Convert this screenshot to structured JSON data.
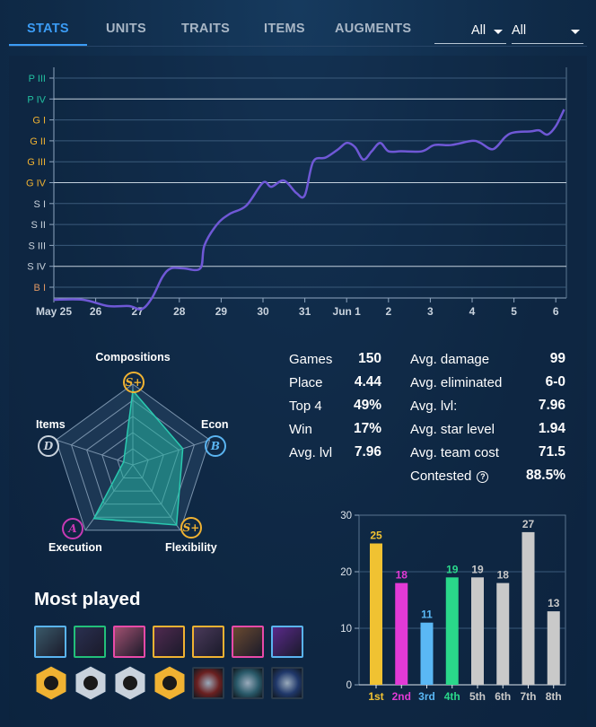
{
  "tabs": [
    {
      "label": "STATS",
      "active": true
    },
    {
      "label": "UNITS",
      "active": false
    },
    {
      "label": "TRAITS",
      "active": false
    },
    {
      "label": "ITEMS",
      "active": false
    },
    {
      "label": "AUGMENTS",
      "active": false
    }
  ],
  "filters": {
    "first": "All",
    "second": "All"
  },
  "rank_chart": {
    "chart_data": {
      "type": "line",
      "y_tick_labels": [
        "P III",
        "P IV",
        "G I",
        "G II",
        "G III",
        "G IV",
        "S I",
        "S II",
        "S III",
        "S IV",
        "B I"
      ],
      "x_tick_labels": [
        "May 25",
        "26",
        "27",
        "28",
        "29",
        "30",
        "31",
        "Jun 1",
        "2",
        "3",
        "4",
        "5",
        "6"
      ],
      "series": [
        {
          "values": [
            [
              0,
              10.6
            ],
            [
              0.7,
              10.6
            ],
            [
              1.3,
              10.9
            ],
            [
              1.8,
              10.9
            ],
            [
              2.1,
              11.05
            ],
            [
              2.35,
              10.5
            ],
            [
              2.6,
              9.5
            ],
            [
              2.8,
              9.1
            ],
            [
              3.1,
              9.1
            ],
            [
              3.5,
              9.1
            ],
            [
              3.6,
              8.0
            ],
            [
              3.9,
              7.0
            ],
            [
              4.2,
              6.5
            ],
            [
              4.6,
              6.1
            ],
            [
              5.0,
              5.0
            ],
            [
              5.2,
              5.2
            ],
            [
              5.5,
              4.9
            ],
            [
              5.8,
              5.5
            ],
            [
              6.0,
              5.6
            ],
            [
              6.2,
              4.0
            ],
            [
              6.5,
              3.8
            ],
            [
              6.8,
              3.4
            ],
            [
              7.0,
              3.1
            ],
            [
              7.2,
              3.3
            ],
            [
              7.4,
              3.9
            ],
            [
              7.6,
              3.5
            ],
            [
              7.8,
              3.1
            ],
            [
              8.0,
              3.5
            ],
            [
              8.3,
              3.5
            ],
            [
              8.8,
              3.5
            ],
            [
              9.1,
              3.2
            ],
            [
              9.5,
              3.2
            ],
            [
              10.0,
              3.0
            ],
            [
              10.2,
              3.1
            ],
            [
              10.5,
              3.4
            ],
            [
              10.8,
              2.8
            ],
            [
              11.0,
              2.6
            ],
            [
              11.4,
              2.55
            ],
            [
              11.6,
              2.5
            ],
            [
              11.8,
              2.7
            ],
            [
              12.0,
              2.3
            ],
            [
              12.2,
              1.5
            ]
          ]
        }
      ],
      "colors": {
        "line": "#6f58d6",
        "gold": "#f0b232",
        "platinum": "#22c0a0",
        "silver": "#c9d2dc",
        "bronze": "#e09864"
      }
    }
  },
  "stats_left": [
    {
      "label": "Games",
      "value": "150"
    },
    {
      "label": "Place",
      "value": "4.44"
    },
    {
      "label": "Top 4",
      "value": "49%"
    },
    {
      "label": "Win",
      "value": "17%"
    },
    {
      "label": "Avg. lvl",
      "value": "7.96"
    }
  ],
  "stats_right": [
    {
      "label": "Avg. damage",
      "value": "99"
    },
    {
      "label": "Avg. eliminated",
      "value": "6-0"
    },
    {
      "label": "Avg. lvl:",
      "value": "7.96"
    },
    {
      "label": "Avg. star level",
      "value": "1.94"
    },
    {
      "label": "Avg. team cost",
      "value": "71.5"
    },
    {
      "label": "Contested",
      "value": "88.5%",
      "help_icon": "question-circle-icon"
    }
  ],
  "radar": {
    "chart_data": {
      "type": "radar",
      "axes": [
        "Compositions",
        "Econ",
        "Flexibility",
        "Execution",
        "Items"
      ],
      "grades": [
        "S+",
        "B",
        "S+",
        "A",
        "D"
      ],
      "values": [
        0.92,
        0.65,
        0.92,
        0.82,
        0.12
      ],
      "max": 1,
      "grade_colors": {
        "S+": "#f0b232",
        "B": "#5ab4f0",
        "A": "#c83ab4",
        "D": "#c9d2dc"
      }
    }
  },
  "most_played": {
    "title": "Most played",
    "champions": [
      {
        "name": "champion-1",
        "border": "#5ab4f0",
        "bg": "#3a5a6a"
      },
      {
        "name": "champion-2",
        "border": "#22c07a",
        "bg": "#2a3050"
      },
      {
        "name": "champion-3",
        "border": "#e84aa8",
        "bg": "#a05070"
      },
      {
        "name": "champion-4",
        "border": "#f0b232",
        "bg": "#502a50"
      },
      {
        "name": "champion-5",
        "border": "#f0b232",
        "bg": "#4a3a5a"
      },
      {
        "name": "champion-6",
        "border": "#e84aa8",
        "bg": "#6a4a30"
      },
      {
        "name": "champion-7",
        "border": "#5ab4f0",
        "bg": "#5a2a8a"
      }
    ],
    "traits": [
      {
        "name": "rose-trait-icon",
        "color": "#f0b232"
      },
      {
        "name": "rose-trait-icon",
        "color": "#c9d2dc"
      },
      {
        "name": "arch-trait-icon",
        "color": "#c9d2dc"
      },
      {
        "name": "crown-trait-icon",
        "color": "#f0b232"
      }
    ],
    "items": [
      {
        "name": "item-1",
        "bg": "#6a2020"
      },
      {
        "name": "item-2",
        "bg": "#2a5a6a"
      },
      {
        "name": "item-3",
        "bg": "#20386a"
      }
    ]
  },
  "placements": {
    "chart_data": {
      "type": "bar",
      "categories": [
        "1st",
        "2nd",
        "3rd",
        "4th",
        "5th",
        "6th",
        "7th",
        "8th"
      ],
      "values": [
        25,
        18,
        11,
        19,
        19,
        18,
        27,
        13
      ],
      "ylim": [
        0,
        30
      ],
      "y_ticks": [
        "0",
        "10",
        "20",
        "30"
      ],
      "colors": [
        "#f0c232",
        "#e23ad6",
        "#5ab8f5",
        "#2ad88a",
        "#c9c9c9",
        "#c9c9c9",
        "#c9c9c9",
        "#c9c9c9"
      ],
      "value_label_colors": [
        "#f0c232",
        "#e23ad6",
        "#5ab8f5",
        "#2ad88a",
        "#c9c9c9",
        "#c9c9c9",
        "#c9c9c9",
        "#c9c9c9"
      ],
      "category_label_colors": [
        "#f0c232",
        "#e23ad6",
        "#5ab8f5",
        "#2ad88a",
        "#c9c9c9",
        "#c9c9c9",
        "#c9c9c9",
        "#c9c9c9"
      ]
    }
  }
}
